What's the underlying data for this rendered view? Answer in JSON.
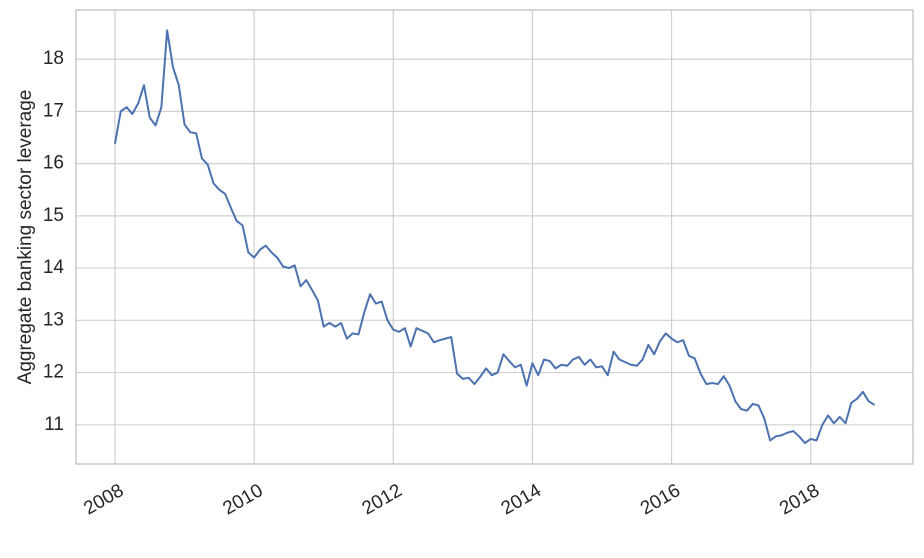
{
  "chart_data": {
    "type": "line",
    "y_label": "Aggregate banking sector leverage",
    "x": [
      2008,
      2008.083,
      2008.167,
      2008.25,
      2008.333,
      2008.417,
      2008.5,
      2008.583,
      2008.667,
      2008.75,
      2008.833,
      2008.917,
      2009,
      2009.083,
      2009.167,
      2009.25,
      2009.333,
      2009.417,
      2009.5,
      2009.583,
      2009.667,
      2009.75,
      2009.833,
      2009.917,
      2010,
      2010.083,
      2010.167,
      2010.25,
      2010.333,
      2010.417,
      2010.5,
      2010.583,
      2010.667,
      2010.75,
      2010.833,
      2010.917,
      2011,
      2011.083,
      2011.167,
      2011.25,
      2011.333,
      2011.417,
      2011.5,
      2011.583,
      2011.667,
      2011.75,
      2011.833,
      2011.917,
      2012,
      2012.083,
      2012.167,
      2012.25,
      2012.333,
      2012.417,
      2012.5,
      2012.583,
      2012.667,
      2012.75,
      2012.833,
      2012.917,
      2013,
      2013.083,
      2013.167,
      2013.25,
      2013.333,
      2013.417,
      2013.5,
      2013.583,
      2013.667,
      2013.75,
      2013.833,
      2013.917,
      2014,
      2014.083,
      2014.167,
      2014.25,
      2014.333,
      2014.417,
      2014.5,
      2014.583,
      2014.667,
      2014.75,
      2014.833,
      2014.917,
      2015,
      2015.083,
      2015.167,
      2015.25,
      2015.333,
      2015.417,
      2015.5,
      2015.583,
      2015.667,
      2015.75,
      2015.833,
      2015.917,
      2016,
      2016.083,
      2016.167,
      2016.25,
      2016.333,
      2016.417,
      2016.5,
      2016.583,
      2016.667,
      2016.75,
      2016.833,
      2016.917,
      2017,
      2017.083,
      2017.167,
      2017.25,
      2017.333,
      2017.417,
      2017.5,
      2017.583,
      2017.667,
      2017.75,
      2017.833,
      2017.917,
      2018,
      2018.083,
      2018.167,
      2018.25,
      2018.333,
      2018.417,
      2018.5,
      2018.583,
      2018.667,
      2018.75,
      2018.833,
      2018.917
    ],
    "values": [
      16.38,
      17.0,
      17.08,
      16.95,
      17.15,
      17.5,
      16.88,
      16.73,
      17.08,
      18.55,
      17.85,
      17.5,
      16.75,
      16.6,
      16.58,
      16.1,
      15.98,
      15.62,
      15.5,
      15.42,
      15.15,
      14.9,
      14.82,
      14.3,
      14.2,
      14.35,
      14.43,
      14.3,
      14.2,
      14.03,
      14.0,
      14.05,
      13.65,
      13.77,
      13.58,
      13.38,
      12.88,
      12.95,
      12.88,
      12.95,
      12.65,
      12.75,
      12.73,
      13.15,
      13.5,
      13.32,
      13.36,
      13.0,
      12.82,
      12.78,
      12.85,
      12.5,
      12.85,
      12.8,
      12.75,
      12.58,
      12.62,
      12.65,
      12.68,
      11.98,
      11.88,
      11.9,
      11.78,
      11.92,
      12.08,
      11.95,
      12.0,
      12.35,
      12.22,
      12.1,
      12.15,
      11.75,
      12.18,
      11.95,
      12.25,
      12.22,
      12.08,
      12.15,
      12.13,
      12.25,
      12.3,
      12.15,
      12.25,
      12.1,
      12.12,
      11.95,
      12.4,
      12.25,
      12.2,
      12.15,
      12.13,
      12.25,
      12.53,
      12.35,
      12.6,
      12.75,
      12.65,
      12.58,
      12.62,
      12.32,
      12.27,
      11.98,
      11.78,
      11.8,
      11.78,
      11.93,
      11.75,
      11.45,
      11.3,
      11.27,
      11.4,
      11.37,
      11.12,
      10.7,
      10.78,
      10.8,
      10.85,
      10.88,
      10.78,
      10.65,
      10.73,
      10.7,
      11.0,
      11.18,
      11.03,
      11.15,
      11.03,
      11.42,
      11.5,
      11.63,
      11.45,
      11.38
    ],
    "color": "#4c72b0",
    "xlim": [
      2007.44,
      2019.47
    ],
    "xticks": [
      2008,
      2010,
      2012,
      2014,
      2016,
      2018
    ],
    "ylim": [
      10.25,
      18.94
    ],
    "yticks": [
      11,
      12,
      13,
      14,
      15,
      16,
      17,
      18
    ],
    "grid": true
  }
}
